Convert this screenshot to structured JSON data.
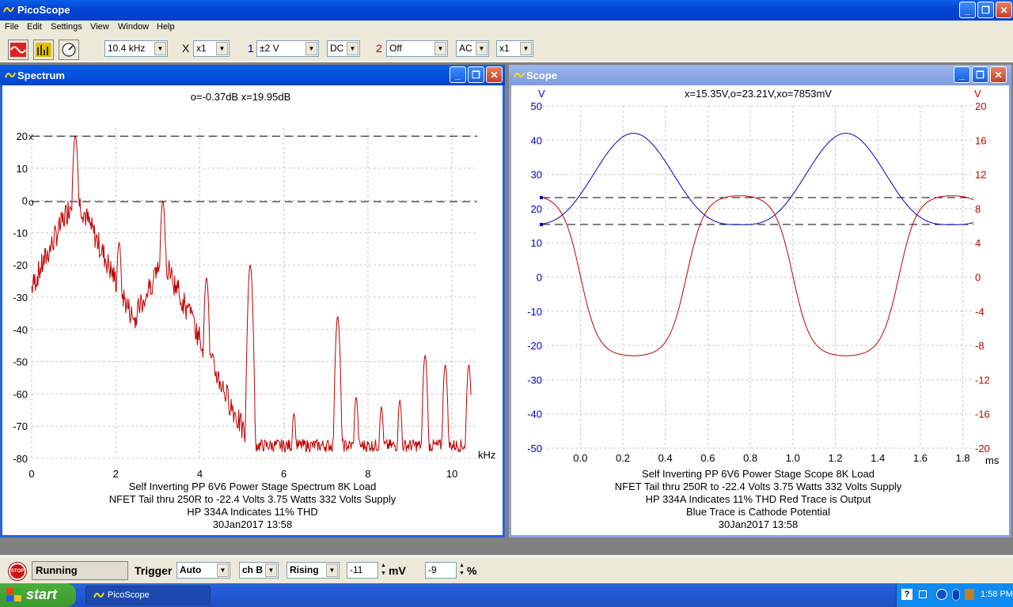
{
  "app": {
    "title": "PicoScope"
  },
  "window_buttons": {
    "minimize": "_",
    "maximize": "❐",
    "close": "✕"
  },
  "menu": [
    "File",
    "Edit",
    "Settings",
    "View",
    "Window",
    "Help"
  ],
  "toolbar": {
    "timebase": "10.4 kHz",
    "x_label": "X",
    "x_mult": "x1",
    "chA_label": "1",
    "chA_range": "±2 V",
    "chA_coupling": "DC",
    "chB_label": "2",
    "chB_range": "Off",
    "chB_coupling": "AC",
    "chB_mult": "x1"
  },
  "colors": {
    "blue_channel": "#0000C0",
    "red_channel": "#C00000",
    "grid": "#C8C8C8"
  },
  "spectrum": {
    "title": "Spectrum",
    "readout": "o=-0.37dB  x=19.95dB",
    "marker_x_label": "x",
    "marker_o_label": "o",
    "caption": [
      "Self Inverting PP 6V6 Power Stage Spectrum 8K Load",
      "NFET Tail thru 250R to -22.4 Volts  3.75 Watts 332 Volts Supply",
      "HP 334A Indicates 11% THD",
      "30Jan2017  13:58"
    ]
  },
  "scope": {
    "title": "Scope",
    "readout": "x=15.35V,o=23.21V,xo=7853mV",
    "caption": [
      "Self Inverting PP 6V6 Power Stage Scope 8K Load",
      "NFET Tail thru 250R to -22.4 Volts  3.75 Watts 332 Volts Supply",
      "HP 334A Indicates 11% THD Red Trace is Output",
      "Blue Trace is Cathode Potential",
      "30Jan2017  13:58"
    ]
  },
  "chart_data": [
    {
      "type": "line",
      "name": "spectrum",
      "xlabel": "kHz",
      "ylabel": "",
      "xlim": [
        0,
        10.6
      ],
      "ylim": [
        -80,
        20
      ],
      "x_ticks": [
        0,
        2,
        4,
        6,
        8,
        10
      ],
      "y_ticks": [
        20,
        10,
        0,
        -10,
        -20,
        -30,
        -40,
        -50,
        -60,
        -70,
        -80
      ],
      "marker_lines_db": [
        19.95,
        -0.37
      ],
      "peaks": [
        {
          "x": 1.04,
          "y": 20
        },
        {
          "x": 2.08,
          "y": -13
        },
        {
          "x": 3.12,
          "y": 0
        },
        {
          "x": 4.16,
          "y": -24
        },
        {
          "x": 5.2,
          "y": -20
        },
        {
          "x": 6.24,
          "y": -66
        },
        {
          "x": 7.28,
          "y": -36
        },
        {
          "x": 7.72,
          "y": -61
        },
        {
          "x": 8.32,
          "y": -64
        },
        {
          "x": 8.76,
          "y": -62
        },
        {
          "x": 9.36,
          "y": -48
        },
        {
          "x": 9.84,
          "y": -51
        },
        {
          "x": 10.4,
          "y": -51
        }
      ],
      "floor_db": -76,
      "trace_color": "#C00000"
    },
    {
      "type": "line",
      "name": "scope",
      "xlabel": "ms",
      "y_left_label": "V",
      "y_right_label": "V",
      "xlim": [
        -0.18,
        1.85
      ],
      "ylim_left": [
        -50,
        50
      ],
      "ylim_right": [
        -20,
        20
      ],
      "x_ticks": [
        0.0,
        0.2,
        0.4,
        0.6,
        0.8,
        1.0,
        1.2,
        1.4,
        1.6,
        1.8
      ],
      "x_tick_labels": [
        "0.0",
        "0.2",
        "0.4",
        "0.6",
        "0.8",
        "1.0",
        "1.2",
        "1.4",
        "1.6",
        "1.8"
      ],
      "y_left_ticks": [
        50,
        40,
        30,
        20,
        10,
        0,
        -10,
        -20,
        -30,
        -40,
        -50
      ],
      "y_right_ticks": [
        20,
        16,
        12,
        8,
        4,
        0,
        -4,
        -8,
        -12,
        -16,
        -20
      ],
      "marker_lines_v": [
        23.21,
        15.35
      ],
      "series": [
        {
          "name": "Blue Trace is Cathode Potential",
          "axis": "left",
          "color": "#0000C0",
          "period_ms": 1.0,
          "phase_ms": 0.25,
          "min": 15.3,
          "max": 42,
          "shape": "rectified"
        },
        {
          "name": "Red Trace is Output",
          "axis": "right",
          "color": "#C00000",
          "period_ms": 1.0,
          "phase_ms": 0.75,
          "min": -9.2,
          "max": 9.5,
          "shape": "compressed"
        }
      ]
    }
  ],
  "status": {
    "stop_label": "STOP",
    "running": "Running",
    "trigger_label": "Trigger",
    "trigger_mode": "Auto",
    "trigger_channel": "ch B",
    "trigger_edge": "Rising",
    "trigger_level": "-11",
    "trigger_level_unit": "mV",
    "pretrigger": "-9",
    "pretrigger_unit": "%"
  },
  "taskbar": {
    "start": "start",
    "item": "PicoScope",
    "clock": "1:58 PM",
    "help": "?"
  }
}
